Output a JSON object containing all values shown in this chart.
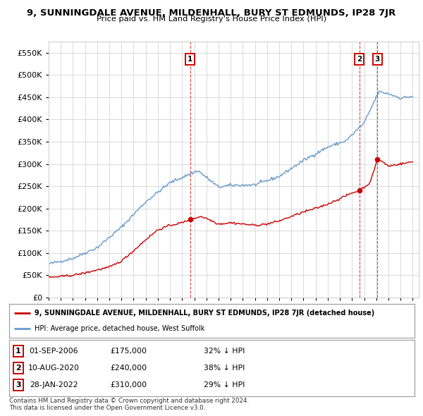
{
  "title": "9, SUNNINGDALE AVENUE, MILDENHALL, BURY ST EDMUNDS, IP28 7JR",
  "subtitle": "Price paid vs. HM Land Registry's House Price Index (HPI)",
  "red_label": "9, SUNNINGDALE AVENUE, MILDENHALL, BURY ST EDMUNDS, IP28 7JR (detached house)",
  "blue_label": "HPI: Average price, detached house, West Suffolk",
  "footer1": "Contains HM Land Registry data © Crown copyright and database right 2024.",
  "footer2": "This data is licensed under the Open Government Licence v3.0.",
  "transactions": [
    {
      "num": "1",
      "date": "01-SEP-2006",
      "price": "£175,000",
      "note": "32% ↓ HPI",
      "year": 2006.67,
      "price_val": 175000
    },
    {
      "num": "2",
      "date": "10-AUG-2020",
      "price": "£240,000",
      "note": "38% ↓ HPI",
      "year": 2020.61,
      "price_val": 240000
    },
    {
      "num": "3",
      "date": "28-JAN-2022",
      "price": "£310,000",
      "note": "29% ↓ HPI",
      "year": 2022.08,
      "price_val": 310000
    }
  ],
  "ylim_max": 575000,
  "xlim_start": 1995.0,
  "xlim_end": 2025.5,
  "background_color": "#ffffff",
  "grid_color": "#cccccc",
  "red_color": "#cc0000",
  "blue_color": "#6699cc",
  "hpi_control": [
    [
      1995.0,
      75000
    ],
    [
      1997.0,
      88000
    ],
    [
      1999.0,
      112000
    ],
    [
      2001.0,
      158000
    ],
    [
      2003.0,
      215000
    ],
    [
      2005.0,
      258000
    ],
    [
      2007.3,
      285000
    ],
    [
      2009.0,
      248000
    ],
    [
      2010.0,
      252000
    ],
    [
      2012.0,
      253000
    ],
    [
      2014.0,
      272000
    ],
    [
      2016.0,
      308000
    ],
    [
      2018.0,
      338000
    ],
    [
      2019.5,
      352000
    ],
    [
      2021.0,
      392000
    ],
    [
      2022.2,
      462000
    ],
    [
      2023.0,
      458000
    ],
    [
      2024.0,
      448000
    ],
    [
      2025.0,
      452000
    ]
  ],
  "red_control": [
    [
      1995.0,
      45000
    ],
    [
      1996.0,
      47000
    ],
    [
      1997.0,
      50000
    ],
    [
      1998.0,
      55000
    ],
    [
      1999.0,
      62000
    ],
    [
      2000.0,
      68000
    ],
    [
      2001.0,
      82000
    ],
    [
      2002.0,
      105000
    ],
    [
      2003.0,
      130000
    ],
    [
      2004.0,
      152000
    ],
    [
      2005.0,
      162000
    ],
    [
      2006.0,
      168000
    ],
    [
      2006.67,
      175000
    ],
    [
      2007.5,
      182000
    ],
    [
      2008.0,
      178000
    ],
    [
      2009.0,
      165000
    ],
    [
      2010.0,
      168000
    ],
    [
      2011.0,
      165000
    ],
    [
      2012.0,
      162000
    ],
    [
      2013.0,
      165000
    ],
    [
      2014.0,
      172000
    ],
    [
      2015.0,
      182000
    ],
    [
      2016.0,
      192000
    ],
    [
      2017.0,
      200000
    ],
    [
      2018.0,
      210000
    ],
    [
      2019.0,
      222000
    ],
    [
      2020.0,
      235000
    ],
    [
      2020.61,
      240000
    ],
    [
      2021.0,
      248000
    ],
    [
      2021.5,
      258000
    ],
    [
      2022.08,
      310000
    ],
    [
      2022.5,
      305000
    ],
    [
      2023.0,
      295000
    ],
    [
      2023.5,
      298000
    ],
    [
      2024.0,
      300000
    ],
    [
      2025.0,
      305000
    ]
  ],
  "yticks": [
    0,
    50000,
    100000,
    150000,
    200000,
    250000,
    300000,
    350000,
    400000,
    450000,
    500000,
    550000
  ],
  "xtick_years": [
    1995,
    1996,
    1997,
    1998,
    1999,
    2000,
    2001,
    2002,
    2003,
    2004,
    2005,
    2006,
    2007,
    2008,
    2009,
    2010,
    2011,
    2012,
    2013,
    2014,
    2015,
    2016,
    2017,
    2018,
    2019,
    2020,
    2021,
    2022,
    2023,
    2024,
    2025
  ]
}
